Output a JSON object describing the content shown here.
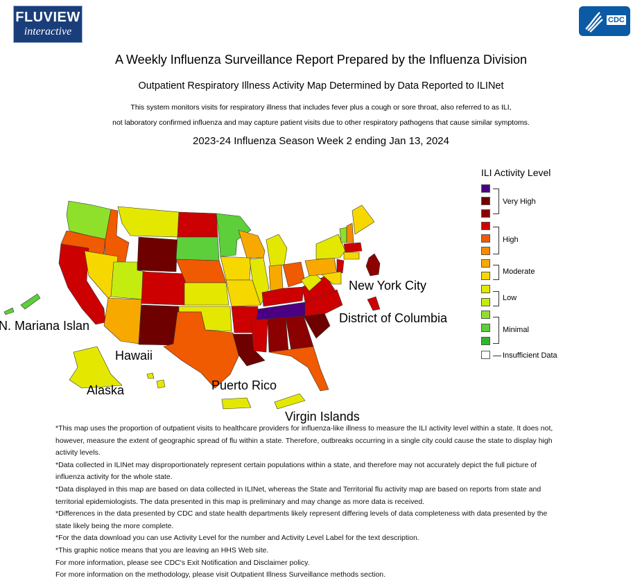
{
  "header": {
    "logo_line1": "FLUVIEW",
    "logo_line2": "interactive",
    "cdc_logo": "CDC"
  },
  "title": "A Weekly Influenza Surveillance Report Prepared by the Influenza Division",
  "subtitle": "Outpatient Respiratory Illness Activity Map Determined by Data Reported to ILINet",
  "description_line1": "This system monitors visits for respiratory illness that includes fever plus a cough or sore throat, also referred to as ILI,",
  "description_line2": "not laboratory confirmed influenza and may capture patient visits due to other respiratory pathogens that cause similar symptoms.",
  "season_heading": "2023-24 Influenza Season Week 2 ending Jan 13, 2024",
  "legend": {
    "title": "ILI Activity Level",
    "levels": [
      {
        "level": 13,
        "color": "#4b0082"
      },
      {
        "level": 12,
        "color": "#6e0000"
      },
      {
        "level": 11,
        "color": "#8b0000"
      },
      {
        "level": 10,
        "color": "#cc0000"
      },
      {
        "level": 9,
        "color": "#f05a00"
      },
      {
        "level": 8,
        "color": "#f58a00"
      },
      {
        "level": 7,
        "color": "#f8a900"
      },
      {
        "level": 6,
        "color": "#f7d700"
      },
      {
        "level": 5,
        "color": "#e4e800"
      },
      {
        "level": 4,
        "color": "#c5ec10"
      },
      {
        "level": 3,
        "color": "#8fe02a"
      },
      {
        "level": 2,
        "color": "#5ccf3a"
      },
      {
        "level": 1,
        "color": "#2db52d"
      },
      {
        "level": 0,
        "color": "#ffffff"
      }
    ],
    "labels": {
      "very_high": "Very High",
      "high": "High",
      "moderate": "Moderate",
      "low": "Low",
      "minimal": "Minimal",
      "insufficient": "Insufficient Data"
    }
  },
  "map_labels": {
    "nyc": "New York City",
    "dc": "District of Columbia",
    "mariana": "N. Mariana Islan",
    "hawaii": "Hawaii",
    "alaska": "Alaska",
    "puerto_rico": "Puerto Rico",
    "virgin_islands": "Virgin Islands"
  },
  "notes": [
    "*This map uses the proportion of outpatient visits to healthcare providers for influenza-like illness to measure the ILI activity level within a state. It does not, however, measure the extent of geographic spread of flu within a state. Therefore, outbreaks occurring in a single city could cause the state to display high activity levels.",
    "*Data collected in ILINet may disproportionately represent certain populations within a state, and therefore may not accurately depict the full picture of influenza activity for the whole state.",
    "*Data displayed in this map are based on data collected in ILINet, whereas the State and Territorial flu activity map are based on reports from state and territorial epidemiologists. The data presented in this map is preliminary and may change as more data is received.",
    "*Differences in the data presented by CDC and state health departments likely represent differing levels of data completeness with data presented by the state likely being the more complete.",
    "*For the data download you can use Activity Level for the number and Activity Level Label for the text description.",
    "*This graphic notice means that you are leaving an HHS Web site.",
    "For more information, please see CDC's Exit Notification and Disclaimer policy.",
    "For more information on the methodology, please visit Outpatient Illness Surveillance methods section."
  ]
}
